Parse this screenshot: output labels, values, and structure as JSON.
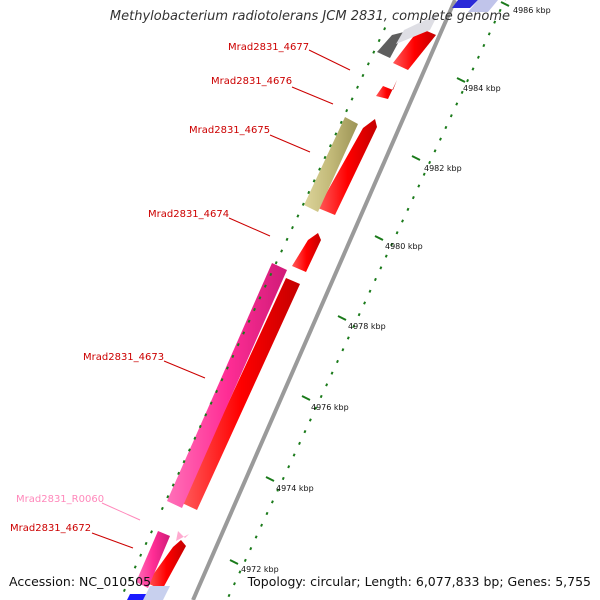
{
  "title": "Methylobacterium radiotolerans JCM 2831, complete genome",
  "accession_text": "Accession: NC_010505",
  "summary_text": "Topology: circular; Length: 6,077,833 bp; Genes: 5,755",
  "colors": {
    "cds": "#ff0000",
    "cds_dark": "#cc0000",
    "trna": "#ff99cc",
    "pink": "#ff3399",
    "olive": "#c8c080",
    "gray_feature": "#666666",
    "blue": "#1a1aff",
    "backbone": "#999999",
    "tick": "#1a7a1a"
  },
  "ticks": [
    {
      "label": "4986 kbp"
    },
    {
      "label": "4984 kbp"
    },
    {
      "label": "4982 kbp"
    },
    {
      "label": "4980 kbp"
    },
    {
      "label": "4978 kbp"
    },
    {
      "label": "4976 kbp"
    },
    {
      "label": "4974 kbp"
    },
    {
      "label": "4972 kbp"
    }
  ],
  "gene_labels": [
    {
      "text": "Mrad2831_4677",
      "color": "#cc0000"
    },
    {
      "text": "Mrad2831_4676",
      "color": "#cc0000"
    },
    {
      "text": "Mrad2831_4675",
      "color": "#cc0000"
    },
    {
      "text": "Mrad2831_4674",
      "color": "#cc0000"
    },
    {
      "text": "Mrad2831_4673",
      "color": "#cc0000"
    },
    {
      "text": "Mrad2831_R0060",
      "color": "#ff88bb"
    },
    {
      "text": "Mrad2831_4672",
      "color": "#cc0000"
    }
  ]
}
